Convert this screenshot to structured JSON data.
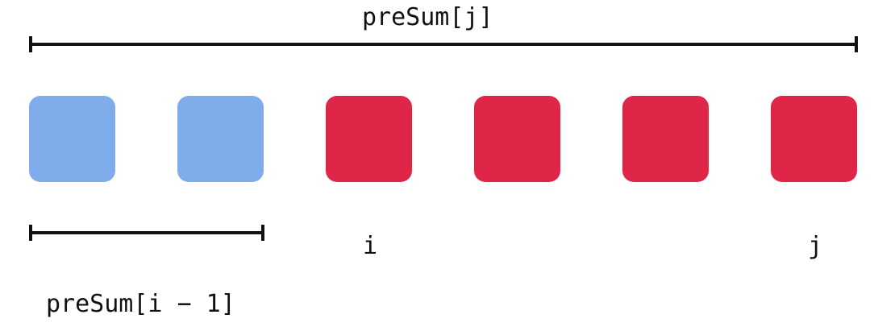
{
  "labels": {
    "top": "preSum[j]",
    "bottom": "preSum[i − 1]",
    "i": "i",
    "j": "j"
  },
  "cells": [
    {
      "color": "blue"
    },
    {
      "color": "blue"
    },
    {
      "color": "red"
    },
    {
      "color": "red"
    },
    {
      "color": "red"
    },
    {
      "color": "red"
    }
  ],
  "colors": {
    "blue": "#7fadeb",
    "red": "#df2649",
    "line": "#111111"
  }
}
